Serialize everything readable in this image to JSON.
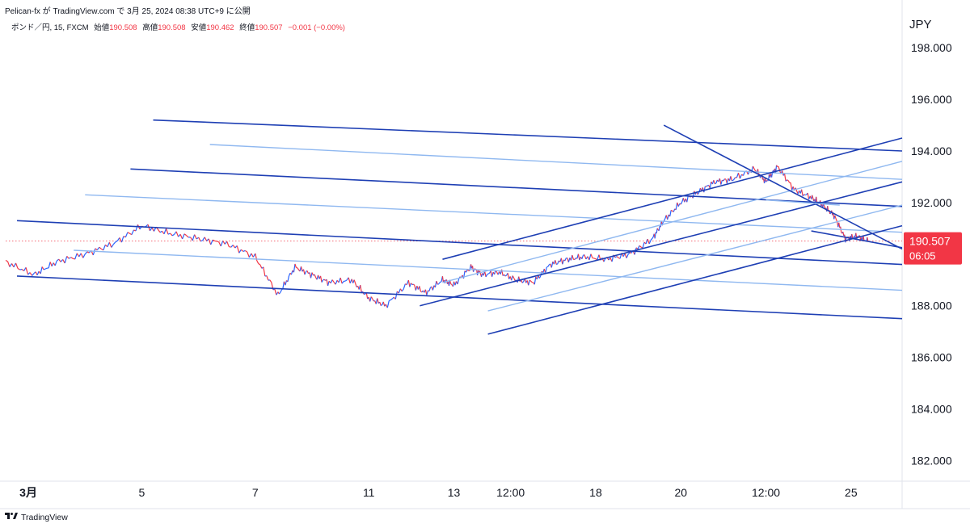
{
  "header": {
    "attribution": "Pelican-fx が TradingView.com で 3月 25, 2024 08:38 UTC+9 に公開"
  },
  "legend": {
    "symbol": "ポンド／円, 15, FXCM",
    "open_label": "始値",
    "open_value": "190.508",
    "high_label": "高値",
    "high_value": "190.508",
    "low_label": "安値",
    "low_value": "190.462",
    "close_label": "終値",
    "close_value": "190.507",
    "change": "−0.001 (−0.00%)"
  },
  "axis": {
    "currency": "JPY"
  },
  "price_tag": {
    "price": "190.507",
    "countdown": "06:05"
  },
  "footer": {
    "brand": "TradingView"
  },
  "colors": {
    "dark_line": "#1e3fb4",
    "light_line": "#8fb8f0",
    "price_tag": "#f23645",
    "candle_up": "#2962ff",
    "candle_down": "#f23645"
  },
  "chart_data": {
    "type": "line",
    "title": "",
    "xlabel": "",
    "ylabel": "",
    "ylim": [
      181.2,
      198.6
    ],
    "y_ticks": [
      "182.000",
      "184.000",
      "186.000",
      "188.000",
      "190.000",
      "192.000",
      "194.000",
      "196.000",
      "198.000"
    ],
    "x_tick_labels": [
      "3月",
      "5",
      "7",
      "11",
      "13",
      "12:00",
      "18",
      "20",
      "12:00",
      "25"
    ],
    "x_tick_positions": [
      0.0,
      2.0,
      4.0,
      6.0,
      7.5,
      8.5,
      10.0,
      11.5,
      13.0,
      14.5
    ],
    "xlim": [
      -0.4,
      15.4
    ],
    "series": [
      {
        "x": [
          -0.4,
          0.1,
          0.5,
          1.0,
          1.5,
          2.0,
          2.5,
          3.0,
          3.5,
          4.0,
          4.4,
          4.7,
          5.0,
          5.3,
          5.7,
          6.0,
          6.3,
          6.7,
          7.0,
          7.3,
          7.5,
          7.8,
          8.0,
          8.3,
          8.6,
          8.9,
          9.2,
          9.5,
          9.8,
          10.2,
          10.6,
          11.0,
          11.2,
          11.5,
          11.8,
          12.1,
          12.4,
          12.8,
          13.0,
          13.2,
          13.5,
          13.8,
          14.0,
          14.2,
          14.4,
          14.6,
          14.8
        ],
        "values": [
          189.7,
          189.2,
          189.7,
          190.0,
          190.4,
          191.1,
          190.8,
          190.6,
          190.4,
          189.9,
          188.4,
          189.5,
          189.2,
          188.9,
          189.0,
          188.3,
          188.0,
          188.9,
          188.5,
          189.0,
          188.8,
          189.5,
          189.2,
          189.3,
          189.0,
          188.9,
          189.6,
          189.8,
          189.9,
          189.8,
          190.0,
          190.6,
          191.3,
          192.0,
          192.4,
          192.8,
          192.9,
          193.3,
          192.8,
          193.4,
          192.5,
          192.2,
          191.9,
          191.5,
          190.6,
          190.7,
          190.5
        ]
      }
    ],
    "current_price": 190.507,
    "trendlines": [
      {
        "style": "dark",
        "x1": 2.2,
        "y1": 195.2,
        "x2": 15.4,
        "y2": 194.0
      },
      {
        "style": "light",
        "x1": 3.2,
        "y1": 194.25,
        "x2": 15.4,
        "y2": 192.9
      },
      {
        "style": "dark",
        "x1": 1.8,
        "y1": 193.3,
        "x2": 15.4,
        "y2": 191.85
      },
      {
        "style": "light",
        "x1": 1.0,
        "y1": 192.3,
        "x2": 15.4,
        "y2": 190.85
      },
      {
        "style": "dark",
        "x1": -0.2,
        "y1": 191.3,
        "x2": 15.4,
        "y2": 189.6
      },
      {
        "style": "light",
        "x1": 0.8,
        "y1": 190.15,
        "x2": 15.4,
        "y2": 188.6
      },
      {
        "style": "dark",
        "x1": -0.2,
        "y1": 189.15,
        "x2": 15.4,
        "y2": 187.5
      },
      {
        "style": "dark",
        "x1": 7.3,
        "y1": 189.8,
        "x2": 15.4,
        "y2": 194.5
      },
      {
        "style": "light",
        "x1": 7.3,
        "y1": 188.9,
        "x2": 15.4,
        "y2": 193.6
      },
      {
        "style": "dark",
        "x1": 6.9,
        "y1": 188.0,
        "x2": 15.4,
        "y2": 192.8
      },
      {
        "style": "light",
        "x1": 8.1,
        "y1": 187.8,
        "x2": 15.4,
        "y2": 191.9
      },
      {
        "style": "dark",
        "x1": 8.1,
        "y1": 186.9,
        "x2": 15.4,
        "y2": 191.1
      },
      {
        "style": "dark",
        "x1": 11.2,
        "y1": 195.0,
        "x2": 15.4,
        "y2": 190.2
      },
      {
        "style": "dark",
        "x1": 13.8,
        "y1": 190.9,
        "x2": 15.4,
        "y2": 190.25
      },
      {
        "style": "light",
        "x1": 13.0,
        "y1": 192.1,
        "x2": 14.3,
        "y2": 191.9
      }
    ]
  }
}
